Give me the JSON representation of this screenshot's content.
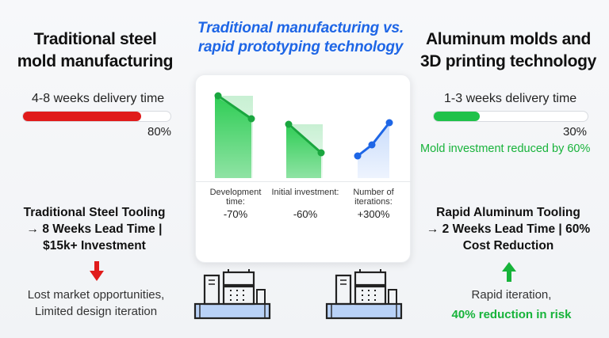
{
  "title": {
    "line1": "Traditional manufacturing vs.",
    "line2": "rapid prototyping technology"
  },
  "left": {
    "heading_line1": "Traditional steel",
    "heading_line2": "mold manufacturing",
    "delivery_label": "4-8 weeks delivery time",
    "progress": 0.8,
    "progress_text": "80%",
    "bar_color": "#e01b1b",
    "summary_line1": "Traditional Steel Tooling",
    "summary_line2": "→ 8 Weeks Lead Time |",
    "summary_line3": "$15k+ Investment",
    "arrow_icon": "arrow-down-icon",
    "note_line1": "Lost market opportunities,",
    "note_line2": "Limited design iteration"
  },
  "right": {
    "heading_line1": "Aluminum molds and",
    "heading_line2": "3D printing technology",
    "delivery_label": "1-3 weeks delivery time",
    "progress": 0.3,
    "progress_text": "30%",
    "bar_color": "#1fc14a",
    "investment_note": "Mold investment reduced by 60%",
    "summary_line1": "Rapid Aluminum Tooling",
    "summary_line2": "→ 2 Weeks Lead Time | 60%",
    "summary_line3": "Cost Reduction",
    "arrow_icon": "arrow-up-icon",
    "note_line1": "Rapid iteration,",
    "note_line2": "40% reduction in risk"
  },
  "panel": {
    "stats": [
      {
        "label_line1": "Development",
        "label_line2": "time:",
        "value": "-70%"
      },
      {
        "label_line1": "Initial investment:",
        "label_line2": "",
        "value": "-60%"
      },
      {
        "label_line1": "Number of",
        "label_line2": "iterations:",
        "value": "+300%"
      }
    ]
  },
  "colors": {
    "accent_blue": "#1e66e6",
    "green": "#17b33a",
    "red": "#e01b1b"
  }
}
